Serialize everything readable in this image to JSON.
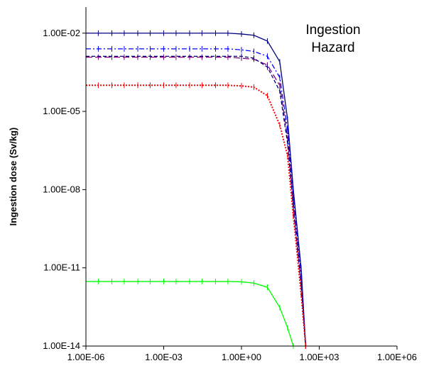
{
  "chart_data": {
    "type": "line",
    "title": "",
    "annotation": [
      "Ingestion",
      "Hazard"
    ],
    "xlabel": "",
    "ylabel": "Ingestion dose (Sv/kg)",
    "x_scale": "log",
    "y_scale": "log",
    "xlim": [
      1e-06,
      1000000.0
    ],
    "ylim": [
      1e-14,
      0.1
    ],
    "x_ticks": [
      1e-06,
      0.001,
      1.0,
      1000.0,
      1000000.0
    ],
    "x_tick_labels": [
      "1.00E-06",
      "1.00E-03",
      "1.00E+00",
      "1.00E+03",
      "1.00E+06"
    ],
    "y_ticks": [
      1e-14,
      1e-11,
      1e-08,
      1e-05,
      0.01
    ],
    "y_tick_labels": [
      "1.00E-14",
      "1.00E-11",
      "1.00E-08",
      "1.00E-05",
      "1.00E-02"
    ],
    "grid": false,
    "legend": "none",
    "series": [
      {
        "color": "#000080",
        "dash": "solid",
        "x": [
          1e-06,
          3e-06,
          1e-05,
          3e-05,
          0.0001,
          0.0003,
          0.001,
          0.003,
          0.01,
          0.03,
          0.1,
          0.3,
          1,
          3,
          10,
          30,
          60,
          100,
          200,
          300
        ],
        "y": [
          0.01,
          0.01,
          0.01,
          0.01,
          0.01,
          0.01,
          0.01,
          0.01,
          0.01,
          0.01,
          0.01,
          0.01,
          0.0093,
          0.0083,
          0.005,
          0.0008,
          5e-06,
          1e-08,
          1e-11,
          1e-14
        ]
      },
      {
        "color": "#0000ff",
        "dash": "dashdot",
        "x": [
          1e-06,
          3e-06,
          1e-05,
          3e-05,
          0.0001,
          0.0003,
          0.001,
          0.003,
          0.01,
          0.03,
          0.1,
          0.3,
          1,
          3,
          10,
          30,
          60,
          100,
          200,
          300
        ],
        "y": [
          0.0025,
          0.0025,
          0.0025,
          0.0025,
          0.0025,
          0.0025,
          0.0025,
          0.0025,
          0.0025,
          0.0025,
          0.0025,
          0.0025,
          0.0023,
          0.002,
          0.0013,
          0.0002,
          2e-06,
          5e-09,
          5e-12,
          1e-14
        ]
      },
      {
        "color": "#800080",
        "dash": "longdash",
        "x": [
          1e-06,
          3e-06,
          1e-05,
          3e-05,
          0.0001,
          0.0003,
          0.001,
          0.003,
          0.01,
          0.03,
          0.1,
          0.3,
          1,
          3,
          10,
          30,
          60,
          100,
          200,
          300
        ],
        "y": [
          0.0012,
          0.0012,
          0.0012,
          0.0012,
          0.0012,
          0.0012,
          0.0012,
          0.0012,
          0.0012,
          0.0012,
          0.0012,
          0.0012,
          0.0011,
          0.001,
          0.0006,
          0.0001,
          1e-06,
          3e-09,
          3e-12,
          1e-14
        ]
      },
      {
        "color": "#000080",
        "dash": "dash",
        "x": [
          1e-06,
          1,
          3,
          10,
          30,
          60,
          100,
          200,
          300
        ],
        "y": [
          0.0013,
          0.0013,
          0.0011,
          0.0005,
          6e-05,
          6e-07,
          2e-09,
          2e-12,
          1e-14
        ]
      },
      {
        "color": "#ff0000",
        "dash": "dot",
        "x": [
          1e-06,
          3e-06,
          1e-05,
          3e-05,
          0.0001,
          0.0003,
          0.001,
          0.003,
          0.01,
          0.03,
          0.1,
          0.3,
          1,
          3,
          10,
          30,
          60,
          100,
          200,
          300
        ],
        "y": [
          0.0001,
          0.0001,
          0.0001,
          0.0001,
          0.0001,
          0.0001,
          0.0001,
          0.0001,
          0.0001,
          0.0001,
          0.0001,
          0.0001,
          9.5e-05,
          8.5e-05,
          4e-05,
          3e-06,
          2e-07,
          1e-09,
          1e-12,
          1e-14
        ]
      },
      {
        "color": "#00ff00",
        "dash": "solid",
        "x": [
          1e-06,
          3e-06,
          1e-05,
          3e-05,
          0.0001,
          0.0003,
          0.001,
          0.003,
          0.01,
          0.03,
          0.1,
          0.3,
          1,
          3,
          10,
          30,
          60,
          100
        ],
        "y": [
          3e-12,
          3e-12,
          3e-12,
          3e-12,
          3e-12,
          3e-12,
          3e-12,
          3e-12,
          3e-12,
          3e-12,
          3e-12,
          3e-12,
          2.9e-12,
          2.6e-12,
          1.8e-12,
          3e-13,
          5e-14,
          1e-14
        ]
      }
    ]
  }
}
